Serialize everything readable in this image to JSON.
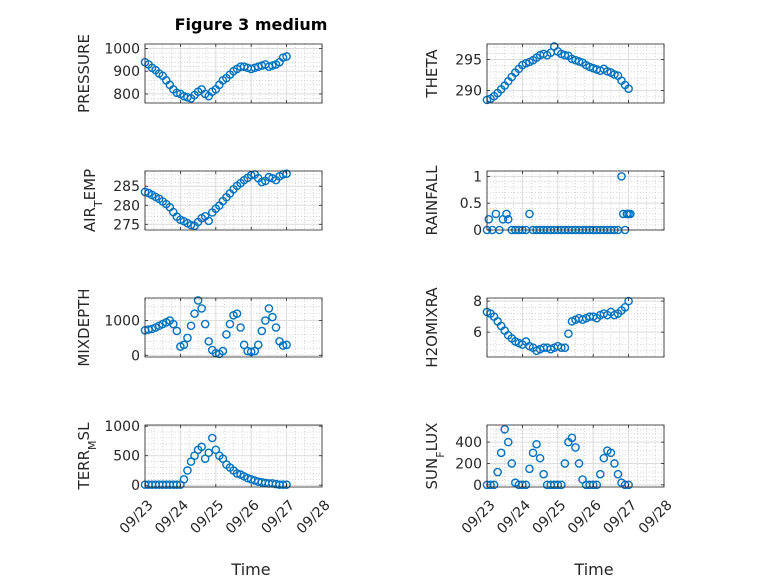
{
  "figure_title": "Figure 3 medium",
  "x_tick_labels": [
    "09/23",
    "09/24",
    "09/25",
    "09/26",
    "09/27",
    "09/28"
  ],
  "x_axis_label": "Time",
  "marker_color": "#0072BD",
  "grid": true,
  "chart_data": [
    {
      "id": "pressure",
      "type": "scatter",
      "ylabel": "PRESSURE",
      "ylim": [
        760,
        1020
      ],
      "yticks": [
        800,
        900,
        1000
      ],
      "xlim": [
        0,
        5
      ],
      "x": [
        0,
        0.1,
        0.2,
        0.3,
        0.4,
        0.5,
        0.6,
        0.7,
        0.8,
        0.9,
        1.0,
        1.1,
        1.2,
        1.3,
        1.4,
        1.5,
        1.6,
        1.7,
        1.8,
        1.9,
        2.0,
        2.1,
        2.2,
        2.3,
        2.4,
        2.5,
        2.6,
        2.7,
        2.8,
        2.9,
        3.0,
        3.1,
        3.2,
        3.3,
        3.4,
        3.5,
        3.6,
        3.7,
        3.8,
        3.9,
        4.0
      ],
      "y": [
        940,
        930,
        915,
        905,
        890,
        880,
        860,
        840,
        820,
        805,
        800,
        790,
        785,
        780,
        795,
        810,
        820,
        800,
        790,
        810,
        820,
        840,
        860,
        870,
        885,
        900,
        910,
        920,
        920,
        915,
        910,
        915,
        920,
        925,
        930,
        920,
        925,
        930,
        940,
        960,
        965
      ]
    },
    {
      "id": "theta",
      "type": "scatter",
      "ylabel": "THETA",
      "ylim": [
        288,
        297.5
      ],
      "yticks": [
        290,
        295
      ],
      "xlim": [
        0,
        5
      ],
      "x": [
        0,
        0.1,
        0.2,
        0.3,
        0.4,
        0.5,
        0.6,
        0.7,
        0.8,
        0.9,
        1.0,
        1.1,
        1.2,
        1.3,
        1.4,
        1.5,
        1.6,
        1.7,
        1.8,
        1.9,
        2.0,
        2.1,
        2.2,
        2.3,
        2.4,
        2.5,
        2.6,
        2.7,
        2.8,
        2.9,
        3.0,
        3.1,
        3.2,
        3.3,
        3.4,
        3.5,
        3.6,
        3.7,
        3.8,
        3.9,
        4.0
      ],
      "y": [
        288.5,
        288.7,
        289.1,
        289.6,
        290.2,
        290.8,
        291.5,
        292.2,
        292.9,
        293.5,
        294.1,
        294.4,
        294.6,
        294.9,
        295.3,
        295.7,
        295.9,
        295.7,
        296.1,
        297.1,
        296.3,
        295.9,
        295.7,
        295.6,
        295.1,
        294.9,
        294.7,
        294.5,
        294.1,
        293.8,
        293.6,
        293.4,
        293.2,
        293.5,
        293.1,
        292.9,
        292.6,
        292.4,
        291.6,
        290.9,
        290.3
      ]
    },
    {
      "id": "air_temp",
      "type": "scatter",
      "ylabel": "AIR_TEMP",
      "ylim": [
        273.5,
        289
      ],
      "yticks": [
        275,
        280,
        285
      ],
      "xlim": [
        0,
        5
      ],
      "x": [
        0,
        0.1,
        0.2,
        0.3,
        0.4,
        0.5,
        0.6,
        0.7,
        0.8,
        0.9,
        1.0,
        1.1,
        1.2,
        1.3,
        1.4,
        1.5,
        1.6,
        1.7,
        1.8,
        1.9,
        2.0,
        2.1,
        2.2,
        2.3,
        2.4,
        2.5,
        2.6,
        2.7,
        2.8,
        2.9,
        3.0,
        3.1,
        3.2,
        3.3,
        3.4,
        3.5,
        3.6,
        3.7,
        3.8,
        3.9,
        4.0
      ],
      "y": [
        283.5,
        283.2,
        282.7,
        282.2,
        281.7,
        281.0,
        280.3,
        279.5,
        278.2,
        277.0,
        276.2,
        275.8,
        275.3,
        274.8,
        274.6,
        275.6,
        276.6,
        277.1,
        275.9,
        278.1,
        279.1,
        279.9,
        281.1,
        282.1,
        283.1,
        284.2,
        285.1,
        285.8,
        286.6,
        287.2,
        287.9,
        288.1,
        287.1,
        286.1,
        286.4,
        287.4,
        287.1,
        286.6,
        287.6,
        288.1,
        288.3
      ]
    },
    {
      "id": "rainfall",
      "type": "scatter",
      "ylabel": "RAINFALL",
      "ylim": [
        0,
        1.1
      ],
      "yticks": [
        0,
        0.5,
        1
      ],
      "xlim": [
        0,
        5
      ],
      "x": [
        0,
        0.05,
        0.15,
        0.25,
        0.35,
        0.45,
        0.55,
        0.6,
        0.7,
        0.8,
        0.9,
        1.0,
        1.1,
        1.2,
        1.3,
        1.4,
        1.5,
        1.6,
        1.7,
        1.8,
        1.9,
        2.0,
        2.1,
        2.2,
        2.3,
        2.4,
        2.5,
        2.6,
        2.7,
        2.8,
        2.9,
        3.0,
        3.1,
        3.2,
        3.3,
        3.4,
        3.5,
        3.6,
        3.7,
        3.8,
        3.85,
        3.9,
        3.95,
        4.0,
        4.05
      ],
      "y": [
        0,
        0.2,
        0,
        0.3,
        0,
        0.2,
        0.3,
        0.2,
        0,
        0,
        0,
        0,
        0,
        0.3,
        0,
        0,
        0,
        0,
        0,
        0,
        0,
        0,
        0,
        0,
        0,
        0,
        0,
        0,
        0,
        0,
        0,
        0,
        0,
        0,
        0,
        0,
        0,
        0,
        0,
        1.0,
        0.3,
        0,
        0.3,
        0.3,
        0.3
      ]
    },
    {
      "id": "mixdepth",
      "type": "scatter",
      "ylabel": "MIXDEPTH",
      "ylim": [
        -50,
        1650
      ],
      "yticks": [
        0,
        1000
      ],
      "xlim": [
        0,
        5
      ],
      "x": [
        0,
        0.1,
        0.2,
        0.3,
        0.4,
        0.5,
        0.6,
        0.7,
        0.8,
        0.9,
        1.0,
        1.1,
        1.2,
        1.3,
        1.4,
        1.5,
        1.6,
        1.7,
        1.8,
        1.9,
        2.0,
        2.1,
        2.2,
        2.3,
        2.4,
        2.5,
        2.6,
        2.7,
        2.8,
        2.9,
        3.0,
        3.1,
        3.2,
        3.3,
        3.4,
        3.5,
        3.6,
        3.7,
        3.8,
        3.9,
        4.0
      ],
      "y": [
        720,
        740,
        760,
        800,
        850,
        900,
        950,
        1000,
        900,
        700,
        250,
        300,
        500,
        850,
        1200,
        1580,
        1350,
        900,
        400,
        150,
        60,
        40,
        120,
        600,
        900,
        1150,
        1200,
        800,
        300,
        120,
        100,
        120,
        300,
        700,
        1000,
        1350,
        1100,
        800,
        400,
        280,
        300
      ]
    },
    {
      "id": "h2omixra",
      "type": "scatter",
      "ylabel": "H2OMIXRA",
      "ylim": [
        4.4,
        8.2
      ],
      "yticks": [
        6,
        8
      ],
      "xlim": [
        0,
        5
      ],
      "x": [
        0,
        0.1,
        0.2,
        0.3,
        0.4,
        0.5,
        0.6,
        0.7,
        0.8,
        0.9,
        1.0,
        1.1,
        1.2,
        1.3,
        1.4,
        1.5,
        1.6,
        1.7,
        1.8,
        1.9,
        2.0,
        2.1,
        2.2,
        2.3,
        2.4,
        2.5,
        2.6,
        2.7,
        2.8,
        2.9,
        3.0,
        3.1,
        3.2,
        3.3,
        3.4,
        3.5,
        3.6,
        3.7,
        3.8,
        3.9,
        4.0
      ],
      "y": [
        7.3,
        7.2,
        7.0,
        6.7,
        6.4,
        6.1,
        5.8,
        5.6,
        5.4,
        5.3,
        5.2,
        5.4,
        5.1,
        5.0,
        4.8,
        4.9,
        5.0,
        5.0,
        4.9,
        5.0,
        5.1,
        5.0,
        5.0,
        5.9,
        6.7,
        6.8,
        6.9,
        6.8,
        6.9,
        7.0,
        7.0,
        6.9,
        7.1,
        7.2,
        7.1,
        7.3,
        7.1,
        7.2,
        7.4,
        7.6,
        8.0
      ]
    },
    {
      "id": "terr_msl",
      "type": "scatter",
      "ylabel": "TERR_MSL",
      "ylim": [
        -30,
        1020
      ],
      "yticks": [
        0,
        500,
        1000
      ],
      "xlim": [
        0,
        5
      ],
      "x": [
        0,
        0.1,
        0.2,
        0.3,
        0.4,
        0.5,
        0.6,
        0.7,
        0.8,
        0.9,
        1.0,
        1.1,
        1.2,
        1.3,
        1.4,
        1.5,
        1.6,
        1.7,
        1.8,
        1.9,
        2.0,
        2.1,
        2.2,
        2.3,
        2.4,
        2.5,
        2.6,
        2.7,
        2.8,
        2.9,
        3.0,
        3.1,
        3.2,
        3.3,
        3.4,
        3.5,
        3.6,
        3.7,
        3.8,
        3.9,
        4.0
      ],
      "y": [
        10,
        10,
        10,
        10,
        10,
        10,
        10,
        10,
        10,
        10,
        10,
        100,
        250,
        400,
        500,
        600,
        650,
        450,
        550,
        800,
        600,
        500,
        450,
        350,
        300,
        250,
        200,
        180,
        150,
        120,
        100,
        80,
        60,
        50,
        40,
        30,
        30,
        20,
        10,
        10,
        10
      ]
    },
    {
      "id": "sun_flux",
      "type": "scatter",
      "ylabel": "SUN_FLUX",
      "ylim": [
        -20,
        560
      ],
      "yticks": [
        0,
        200,
        400
      ],
      "xlim": [
        0,
        5
      ],
      "x": [
        0,
        0.1,
        0.2,
        0.3,
        0.4,
        0.5,
        0.6,
        0.7,
        0.8,
        0.9,
        1.0,
        1.1,
        1.2,
        1.3,
        1.4,
        1.5,
        1.6,
        1.7,
        1.8,
        1.9,
        2.0,
        2.1,
        2.2,
        2.3,
        2.4,
        2.5,
        2.6,
        2.7,
        2.8,
        2.9,
        3.0,
        3.1,
        3.2,
        3.3,
        3.4,
        3.5,
        3.6,
        3.7,
        3.8,
        3.9,
        4.0
      ],
      "y": [
        0,
        0,
        0,
        120,
        300,
        520,
        400,
        200,
        20,
        0,
        0,
        0,
        150,
        300,
        380,
        250,
        100,
        0,
        0,
        0,
        0,
        0,
        200,
        400,
        440,
        350,
        200,
        50,
        0,
        0,
        0,
        0,
        100,
        250,
        320,
        300,
        200,
        100,
        20,
        0,
        0
      ]
    }
  ]
}
